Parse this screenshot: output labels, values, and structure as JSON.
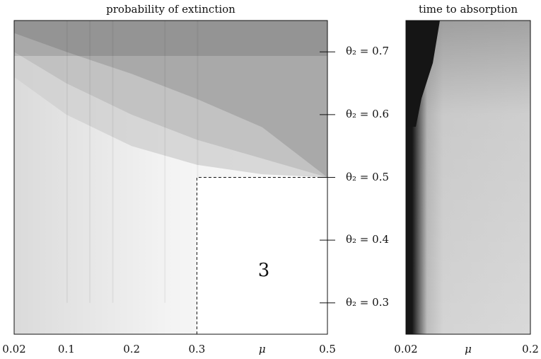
{
  "chart_data": [
    {
      "type": "heatmap",
      "title": "probability of extinction",
      "x_ticks": [
        "0.02",
        "0.1",
        "0.2",
        "0.3",
        "μ",
        "0.5"
      ],
      "x_tick_values": [
        0.02,
        0.1,
        0.2,
        0.3,
        0.4,
        0.5
      ],
      "xlim": [
        0.02,
        0.5
      ],
      "ylim": [
        0.25,
        0.75
      ],
      "region_label": "3",
      "boundary": {
        "mu": 0.3,
        "theta2": 0.5
      },
      "vertical_bands_mu": [
        0.1,
        0.135,
        0.17,
        0.25,
        0.3
      ],
      "curves": [
        {
          "mu": [
            0.02,
            0.1,
            0.2,
            0.3,
            0.4,
            0.5
          ],
          "theta2": [
            0.73,
            0.7,
            0.665,
            0.625,
            0.58,
            0.5
          ]
        },
        {
          "mu": [
            0.02,
            0.1,
            0.2,
            0.3,
            0.4,
            0.5
          ],
          "theta2": [
            0.7,
            0.65,
            0.6,
            0.56,
            0.53,
            0.5
          ]
        },
        {
          "mu": [
            0.02,
            0.1,
            0.2,
            0.3,
            0.4,
            0.5
          ],
          "theta2": [
            0.66,
            0.6,
            0.55,
            0.52,
            0.505,
            0.5
          ]
        }
      ]
    },
    {
      "type": "heatmap",
      "title": "time to absorption",
      "x_ticks": [
        "0.02",
        "μ",
        "0.2"
      ],
      "x_tick_values": [
        0.02,
        0.11,
        0.2
      ],
      "xlim": [
        0.02,
        0.2
      ],
      "ylim": [
        0.25,
        0.75
      ]
    }
  ],
  "theta_axis": {
    "ticks": [
      {
        "value": 0.7,
        "label": "θ₂ = 0.7"
      },
      {
        "value": 0.6,
        "label": "θ₂ = 0.6"
      },
      {
        "value": 0.5,
        "label": "θ₂ = 0.5"
      },
      {
        "value": 0.4,
        "label": "θ₂ = 0.4"
      },
      {
        "value": 0.3,
        "label": "θ₂ = 0.3"
      }
    ]
  }
}
